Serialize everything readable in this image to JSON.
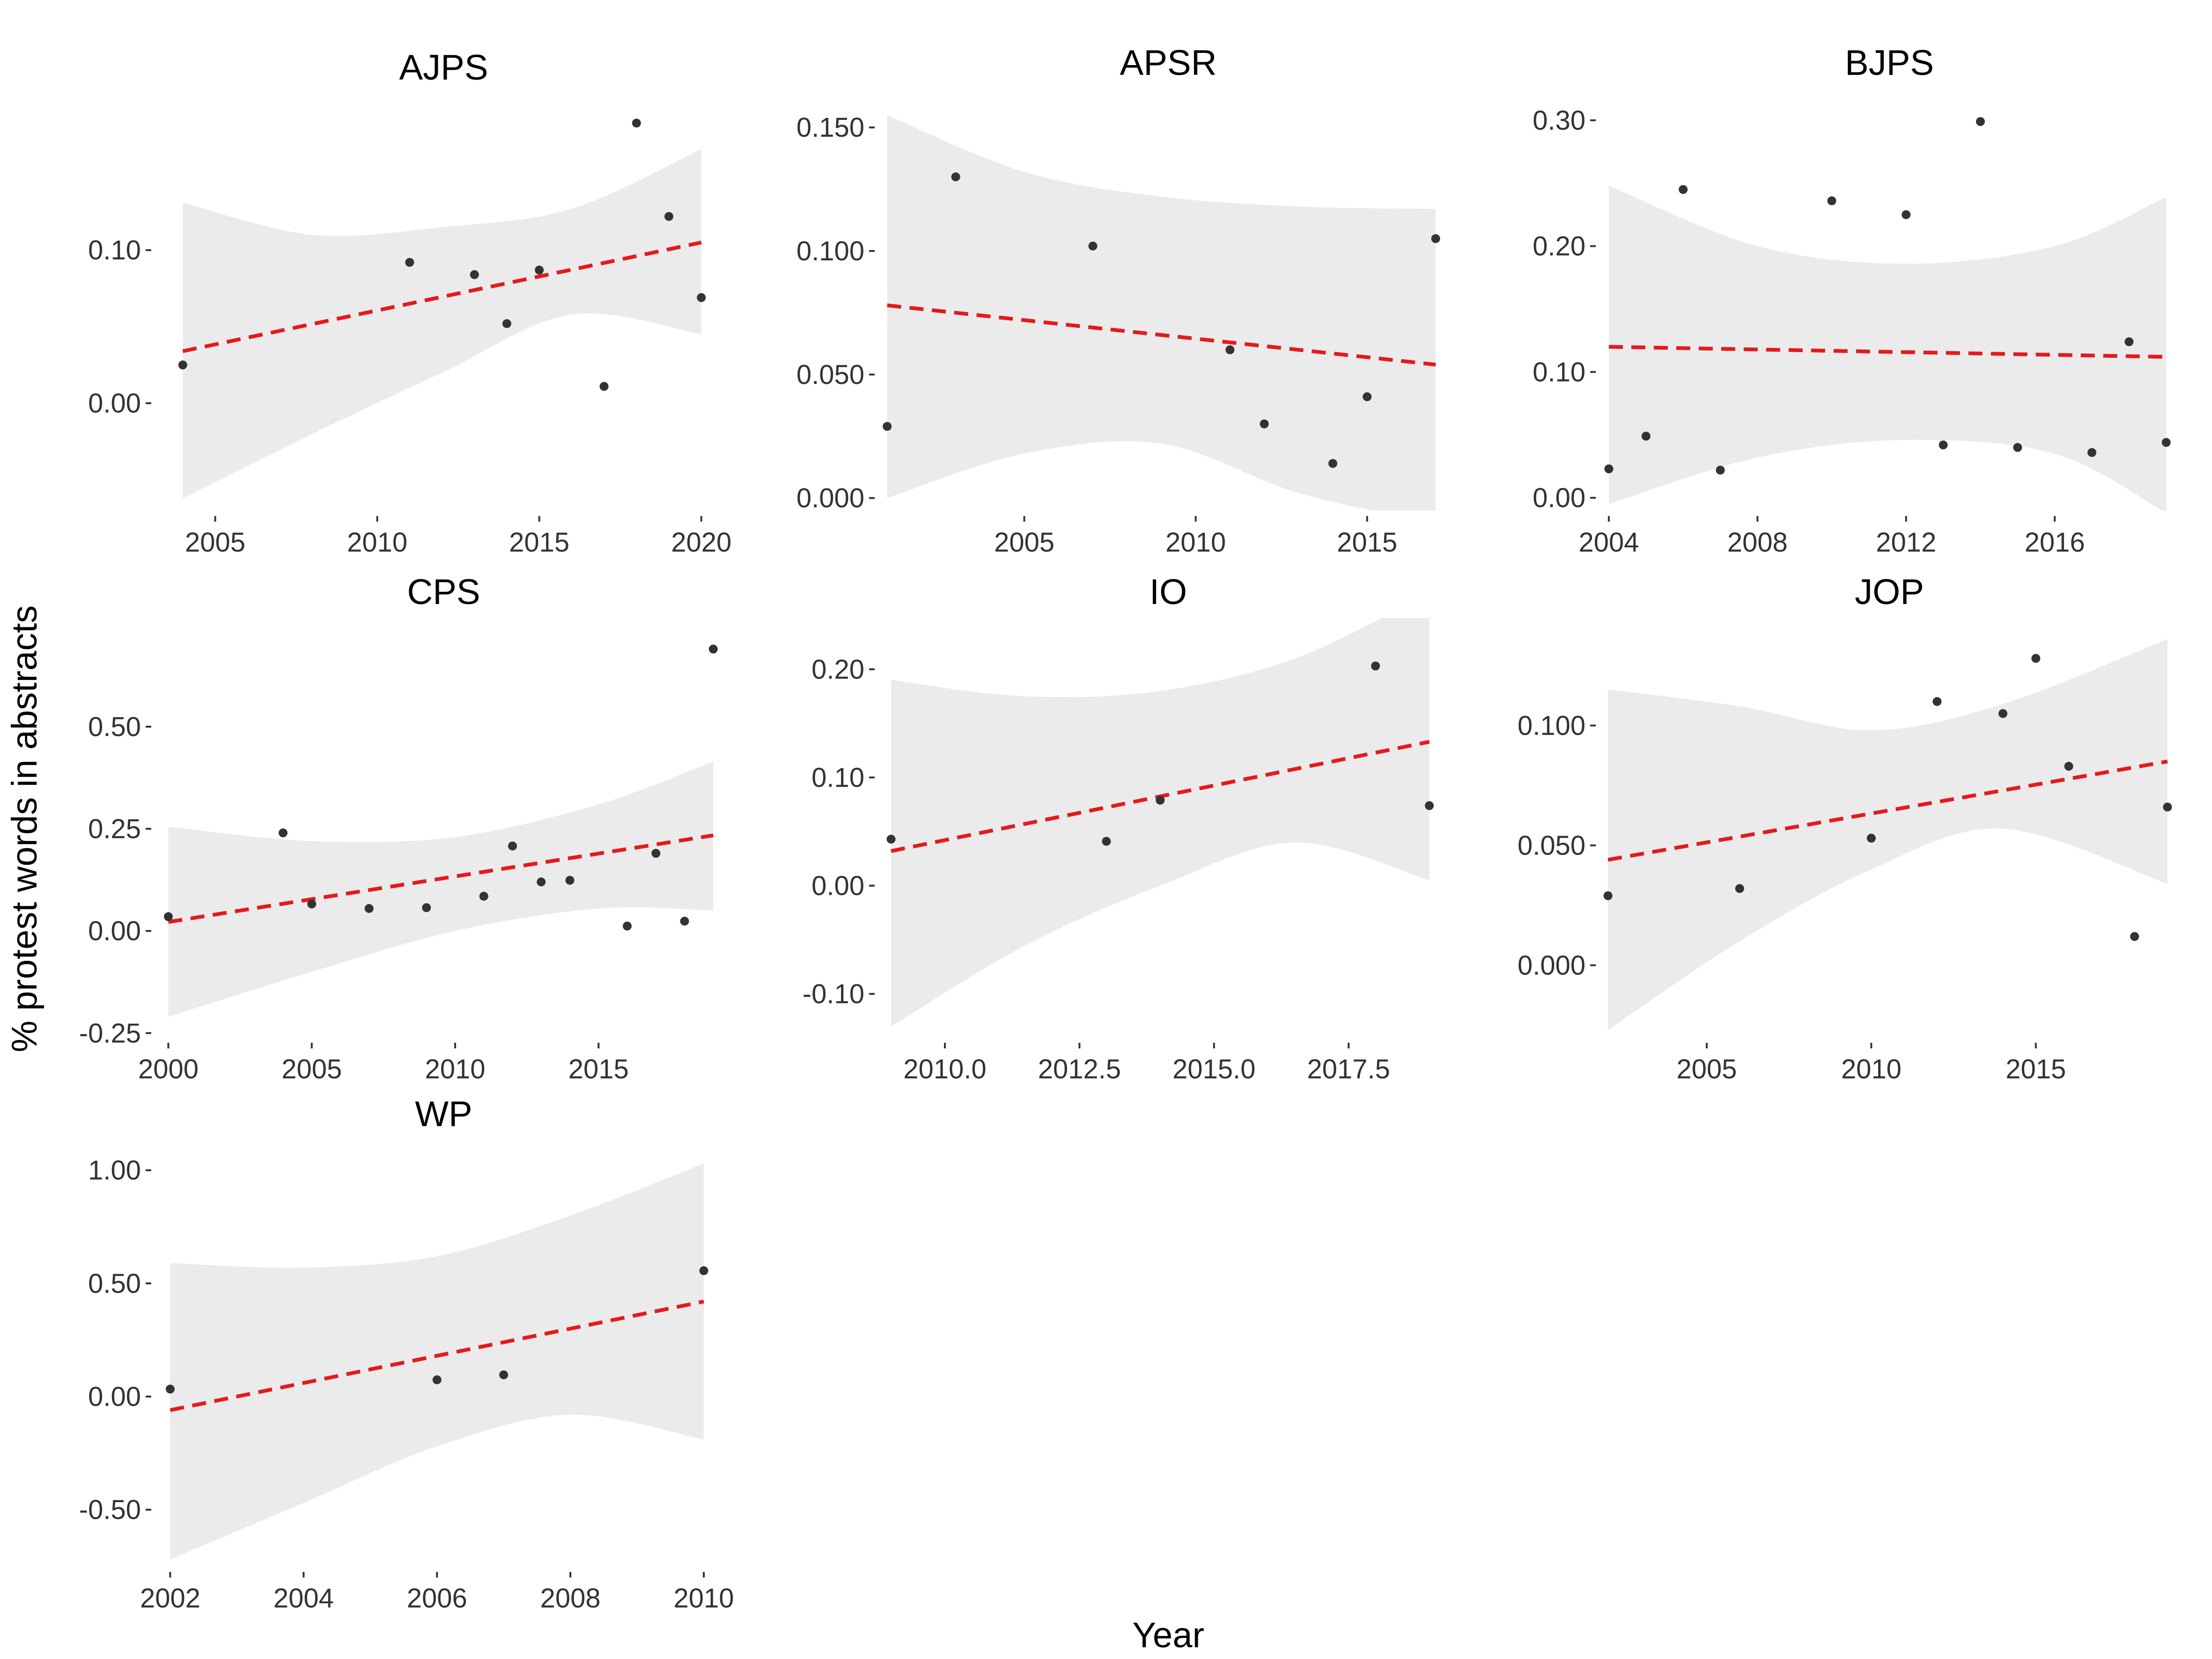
{
  "figure": {
    "xlabel": "Year",
    "ylabel": "% protest words in abstracts",
    "colors": {
      "ribbon": "#ebebeb",
      "trend": "#e41a1c",
      "point": "#333333"
    }
  },
  "chart_data": [
    {
      "type": "scatter",
      "title": "AJPS",
      "x": [
        2004,
        2011,
        2013,
        2014,
        2015,
        2017,
        2018,
        2019,
        2020
      ],
      "y": [
        0.025,
        0.092,
        0.084,
        0.052,
        0.087,
        0.011,
        0.183,
        0.122,
        0.069
      ],
      "trend": {
        "x": [
          2004,
          2020
        ],
        "y": [
          0.034,
          0.105
        ]
      },
      "ribbon": {
        "x": [
          2004,
          2008,
          2012,
          2016,
          2020
        ],
        "lower": [
          -0.062,
          -0.02,
          0.02,
          0.058,
          0.045
        ],
        "upper": [
          0.131,
          0.11,
          0.115,
          0.127,
          0.166
        ]
      },
      "xlim": [
        2003.2,
        2020.9
      ],
      "ylim": [
        -0.07,
        0.19
      ],
      "xticks": [
        "2005",
        "2010",
        "2015",
        "2020"
      ],
      "yticks": [
        "0.00",
        "0.10"
      ]
    },
    {
      "type": "scatter",
      "title": "APSR",
      "x": [
        2001,
        2003,
        2007,
        2011,
        2012,
        2014,
        2015,
        2017
      ],
      "y": [
        0.029,
        0.13,
        0.102,
        0.06,
        0.03,
        0.014,
        0.041,
        0.105
      ],
      "trend": {
        "x": [
          2001,
          2017
        ],
        "y": [
          0.078,
          0.054
        ]
      },
      "ribbon": {
        "x": [
          2001,
          2005,
          2009,
          2013,
          2017
        ],
        "lower": [
          0.0,
          0.018,
          0.022,
          0.002,
          -0.01
        ],
        "upper": [
          0.155,
          0.132,
          0.122,
          0.118,
          0.117
        ]
      },
      "xlim": [
        2000.8,
        2017.6
      ],
      "ylim": [
        -0.005,
        0.158
      ],
      "xticks": [
        "2005",
        "2010",
        "2015"
      ],
      "yticks": [
        "0.000",
        "0.050",
        "0.100",
        "0.150"
      ]
    },
    {
      "type": "scatter",
      "title": "BJPS",
      "x": [
        2004,
        2005,
        2006,
        2007,
        2010,
        2012,
        2013,
        2014,
        2015,
        2017,
        2018,
        2019
      ],
      "y": [
        0.023,
        0.049,
        0.245,
        0.022,
        0.236,
        0.225,
        0.042,
        0.299,
        0.04,
        0.036,
        0.124,
        0.044
      ],
      "trend": {
        "x": [
          2004,
          2019
        ],
        "y": [
          0.12,
          0.112
        ]
      },
      "ribbon": {
        "x": [
          2004,
          2008,
          2012,
          2016,
          2019
        ],
        "lower": [
          -0.005,
          0.032,
          0.046,
          0.035,
          -0.012
        ],
        "upper": [
          0.248,
          0.2,
          0.186,
          0.2,
          0.239
        ]
      },
      "xlim": [
        2003.8,
        2019.3
      ],
      "ylim": [
        -0.01,
        0.31
      ],
      "xticks": [
        "2004",
        "2008",
        "2012",
        "2016"
      ],
      "yticks": [
        "0.00",
        "0.10",
        "0.20",
        "0.30"
      ]
    },
    {
      "type": "scatter",
      "title": "CPS",
      "x": [
        2000,
        2004,
        2005,
        2007,
        2009,
        2011,
        2012,
        2013,
        2014,
        2016,
        2017,
        2018,
        2019
      ],
      "y": [
        0.035,
        0.24,
        0.066,
        0.055,
        0.057,
        0.085,
        0.208,
        0.12,
        0.124,
        0.012,
        0.19,
        0.024,
        0.69
      ],
      "trend": {
        "x": [
          2000,
          2019
        ],
        "y": [
          0.022,
          0.234
        ]
      },
      "ribbon": {
        "x": [
          2000,
          2005,
          2010,
          2015,
          2019
        ],
        "lower": [
          -0.21,
          -0.1,
          0.0,
          0.055,
          0.05
        ],
        "upper": [
          0.255,
          0.22,
          0.23,
          0.31,
          0.415
        ]
      },
      "xlim": [
        1999.6,
        2019.6
      ],
      "ylim": [
        -0.26,
        0.72
      ],
      "xticks": [
        "2000",
        "2005",
        "2010",
        "2015"
      ],
      "yticks": [
        "-0.25",
        "0.00",
        "0.25",
        "0.50"
      ]
    },
    {
      "type": "scatter",
      "title": "IO",
      "x": [
        2009,
        2013,
        2014,
        2018,
        2019
      ],
      "y": [
        0.043,
        0.041,
        0.079,
        0.203,
        0.074
      ],
      "trend": {
        "x": [
          2009,
          2019
        ],
        "y": [
          0.032,
          0.133
        ]
      },
      "ribbon": {
        "x": [
          2009,
          2011.5,
          2014,
          2016.5,
          2019
        ],
        "lower": [
          -0.13,
          -0.055,
          0.0,
          0.04,
          0.005
        ],
        "upper": [
          0.19,
          0.175,
          0.18,
          0.21,
          0.27
        ]
      },
      "xlim": [
        2008.8,
        2019.5
      ],
      "ylim": [
        -0.14,
        0.23
      ],
      "xticks": [
        "2010.0",
        "2012.5",
        "2015.0",
        "2017.5"
      ],
      "yticks": [
        "-0.10",
        "0.00",
        "0.10",
        "0.20"
      ]
    },
    {
      "type": "scatter",
      "title": "JOP",
      "x": [
        2002,
        2006,
        2010,
        2012,
        2014,
        2015,
        2016,
        2018,
        2019
      ],
      "y": [
        0.029,
        0.032,
        0.053,
        0.11,
        0.105,
        0.128,
        0.083,
        0.012,
        0.066
      ],
      "trend": {
        "x": [
          2002,
          2019
        ],
        "y": [
          0.044,
          0.085
        ]
      },
      "ribbon": {
        "x": [
          2002,
          2006,
          2010,
          2014,
          2019
        ],
        "lower": [
          -0.027,
          0.01,
          0.04,
          0.057,
          0.034
        ],
        "upper": [
          0.115,
          0.108,
          0.098,
          0.109,
          0.136
        ]
      },
      "xlim": [
        2001.8,
        2019.3
      ],
      "ylim": [
        -0.03,
        0.137
      ],
      "xticks": [
        "2005",
        "2010",
        "2015"
      ],
      "yticks": [
        "0.000",
        "0.050",
        "0.100"
      ]
    },
    {
      "type": "scatter",
      "title": "WP",
      "x": [
        2002,
        2006,
        2007,
        2010
      ],
      "y": [
        0.033,
        0.074,
        0.096,
        0.556
      ],
      "trend": {
        "x": [
          2002,
          2010
        ],
        "y": [
          -0.06,
          0.42
        ]
      },
      "ribbon": {
        "x": [
          2002,
          2004,
          2006,
          2008,
          2010
        ],
        "lower": [
          -0.72,
          -0.47,
          -0.22,
          -0.08,
          -0.19
        ],
        "upper": [
          0.59,
          0.57,
          0.62,
          0.8,
          1.03
        ]
      },
      "xlim": [
        2001.8,
        2010.4
      ],
      "ylim": [
        -0.75,
        1.05
      ],
      "xticks": [
        "2002",
        "2004",
        "2006",
        "2008",
        "2010"
      ],
      "yticks": [
        "-0.50",
        "0.00",
        "0.50",
        "1.00"
      ]
    }
  ]
}
